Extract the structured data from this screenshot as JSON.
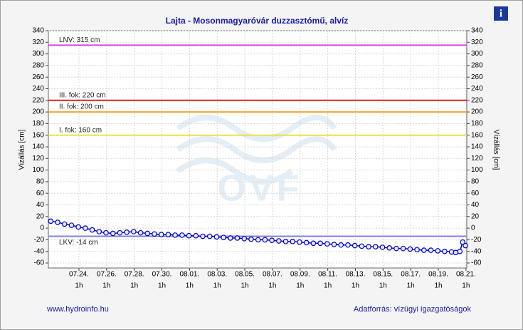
{
  "chart_data": {
    "type": "line",
    "title": "Lajta - Mosonmagyaróvár duzzasztómű, alvíz",
    "y_label": "Vízállás [cm]",
    "y2_label": "Vízállás [cm]",
    "watermark": "OVF",
    "footer_left": "www.hydroinfo.hu",
    "footer_right": "Adatforrás: vízügyi igazgatóságok",
    "info_icon": "i",
    "ylim": [
      -60,
      340
    ],
    "yticks": [
      -60,
      -40,
      -20,
      0,
      20,
      40,
      60,
      80,
      100,
      120,
      140,
      160,
      180,
      200,
      220,
      240,
      260,
      280,
      300,
      320,
      340
    ],
    "xlim": [
      21.83,
      52.1
    ],
    "xticks": [
      {
        "value": 24.042,
        "label": "07.24.",
        "time": "1h"
      },
      {
        "value": 26.042,
        "label": "07.26.",
        "time": "1h"
      },
      {
        "value": 28.042,
        "label": "07.28.",
        "time": "1h"
      },
      {
        "value": 30.042,
        "label": "07.30.",
        "time": "1h"
      },
      {
        "value": 32.042,
        "label": "08.01.",
        "time": "1h"
      },
      {
        "value": 34.042,
        "label": "08.03.",
        "time": "1h"
      },
      {
        "value": 36.042,
        "label": "08.05.",
        "time": "1h"
      },
      {
        "value": 38.042,
        "label": "08.07.",
        "time": "1h"
      },
      {
        "value": 40.042,
        "label": "08.09.",
        "time": "1h"
      },
      {
        "value": 42.042,
        "label": "08.11.",
        "time": "1h"
      },
      {
        "value": 44.042,
        "label": "08.13.",
        "time": "1h"
      },
      {
        "value": 46.042,
        "label": "08.15.",
        "time": "1h"
      },
      {
        "value": 48.042,
        "label": "08.17.",
        "time": "1h"
      },
      {
        "value": 50.042,
        "label": "08.19.",
        "time": "1h"
      },
      {
        "value": 52.042,
        "label": "08.21.",
        "time": "1h"
      }
    ],
    "grid": true,
    "levels": [
      {
        "label": "LNV: 315 cm",
        "value": 315,
        "color": "#e040e0"
      },
      {
        "label": "III. fok: 220 cm",
        "value": 220,
        "color": "#e02020"
      },
      {
        "label": "II. fok: 200 cm",
        "value": 200,
        "color": "#f5a623"
      },
      {
        "label": "I. fok: 160 cm",
        "value": 160,
        "color": "#f0e040"
      },
      {
        "label": "LKV: -14 cm",
        "value": -14,
        "color": "#8080e0"
      }
    ],
    "series": [
      {
        "color": "#0000c8",
        "x": [
          22,
          22.5,
          23,
          23.5,
          24,
          24.5,
          25,
          25.5,
          26,
          26.5,
          27,
          27.5,
          28,
          28.5,
          29,
          29.5,
          30,
          30.5,
          31,
          31.5,
          32,
          32.5,
          33,
          33.5,
          34,
          34.5,
          35,
          35.5,
          36,
          36.5,
          37,
          37.5,
          38,
          38.5,
          39,
          39.5,
          40,
          40.5,
          41,
          41.5,
          42,
          42.5,
          43,
          43.5,
          44,
          44.5,
          45,
          45.5,
          46,
          46.5,
          47,
          47.5,
          48,
          48.5,
          49,
          49.5,
          50,
          50.5,
          51,
          51.3,
          51.6,
          51.8,
          52.0
        ],
        "values": [
          12,
          10,
          7,
          5,
          2,
          0,
          -3,
          -6,
          -8,
          -9,
          -8,
          -7,
          -6,
          -8,
          -9,
          -10,
          -11,
          -11,
          -12,
          -12,
          -13,
          -13,
          -14,
          -14,
          -15,
          -16,
          -17,
          -17,
          -18,
          -19,
          -20,
          -20,
          -21,
          -22,
          -23,
          -23,
          -24,
          -25,
          -26,
          -26,
          -27,
          -28,
          -29,
          -29,
          -30,
          -31,
          -32,
          -32,
          -33,
          -34,
          -35,
          -35,
          -36,
          -37,
          -38,
          -38,
          -39,
          -40,
          -41,
          -42,
          -40,
          -24,
          -30
        ]
      }
    ]
  }
}
